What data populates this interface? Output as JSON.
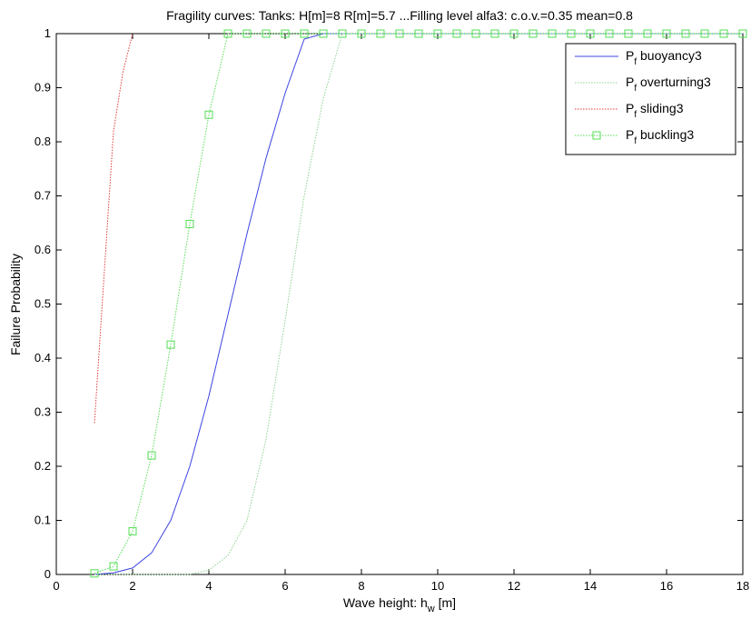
{
  "chart_data": {
    "type": "line",
    "title": "Fragility curves: Tanks: H[m]=8 R[m]=5.7 ...Filling level alfa3: c.o.v.=0.35 mean=0.8",
    "xlabel_main": "Wave height: h",
    "xlabel_sub": "w",
    "xlabel_unit": " [m]",
    "ylabel": "Failure Probability",
    "xlim": [
      0,
      18
    ],
    "ylim": [
      0,
      1
    ],
    "xticks": [
      0,
      2,
      4,
      6,
      8,
      10,
      12,
      14,
      16,
      18
    ],
    "yticks": [
      0,
      0.1,
      0.2,
      0.3,
      0.4,
      0.5,
      0.6,
      0.7,
      0.8,
      0.9,
      1
    ],
    "grid": false,
    "legend_position": "top-right",
    "series": [
      {
        "name_prefix": "P",
        "name_sub": "f",
        "name_suffix": " buoyancy3",
        "color": "#3d45e0",
        "dash": "",
        "marker": "none",
        "x": [
          1,
          1.5,
          2,
          2.5,
          3,
          3.5,
          4,
          4.5,
          5,
          5.5,
          6,
          6.5,
          7,
          18
        ],
        "y": [
          0.0,
          0.003,
          0.012,
          0.04,
          0.1,
          0.2,
          0.33,
          0.48,
          0.63,
          0.77,
          0.89,
          0.99,
          1.0,
          1.0
        ]
      },
      {
        "name_prefix": "P",
        "name_sub": "f",
        "name_suffix": " overturning3",
        "color": "#8fd08f",
        "dash": "1.5,1.5",
        "marker": "none",
        "x": [
          1,
          2,
          3,
          3.5,
          4,
          4.5,
          5,
          5.5,
          6,
          6.5,
          7,
          7.5,
          18
        ],
        "y": [
          0,
          0,
          0,
          0.0,
          0.008,
          0.035,
          0.1,
          0.25,
          0.47,
          0.7,
          0.88,
          1.0,
          1.0
        ]
      },
      {
        "name_prefix": "P",
        "name_sub": "f",
        "name_suffix": " sliding3",
        "color": "#e03a3a",
        "dash": "1.5,1.5",
        "marker": "none",
        "x": [
          1,
          1.25,
          1.5,
          1.75,
          2
        ],
        "y": [
          0.28,
          0.55,
          0.82,
          0.93,
          1.0
        ]
      },
      {
        "name_prefix": "P",
        "name_sub": "f",
        "name_suffix": " buckling3",
        "color": "#55dd55",
        "dash": "1.5,1.5",
        "marker": "square",
        "x": [
          1,
          1.5,
          2,
          2.5,
          3,
          3.5,
          4,
          4.5,
          5,
          5.5,
          6,
          6.5,
          7,
          7.5,
          8,
          8.5,
          9,
          9.5,
          10,
          10.5,
          11,
          11.5,
          12,
          12.5,
          13,
          13.5,
          14,
          14.5,
          15,
          15.5,
          16,
          16.5,
          17,
          17.5,
          18
        ],
        "y": [
          0.002,
          0.015,
          0.08,
          0.22,
          0.425,
          0.648,
          0.85,
          1,
          1,
          1,
          1,
          1,
          1,
          1,
          1,
          1,
          1,
          1,
          1,
          1,
          1,
          1,
          1,
          1,
          1,
          1,
          1,
          1,
          1,
          1,
          1,
          1,
          1,
          1,
          1
        ]
      }
    ]
  }
}
